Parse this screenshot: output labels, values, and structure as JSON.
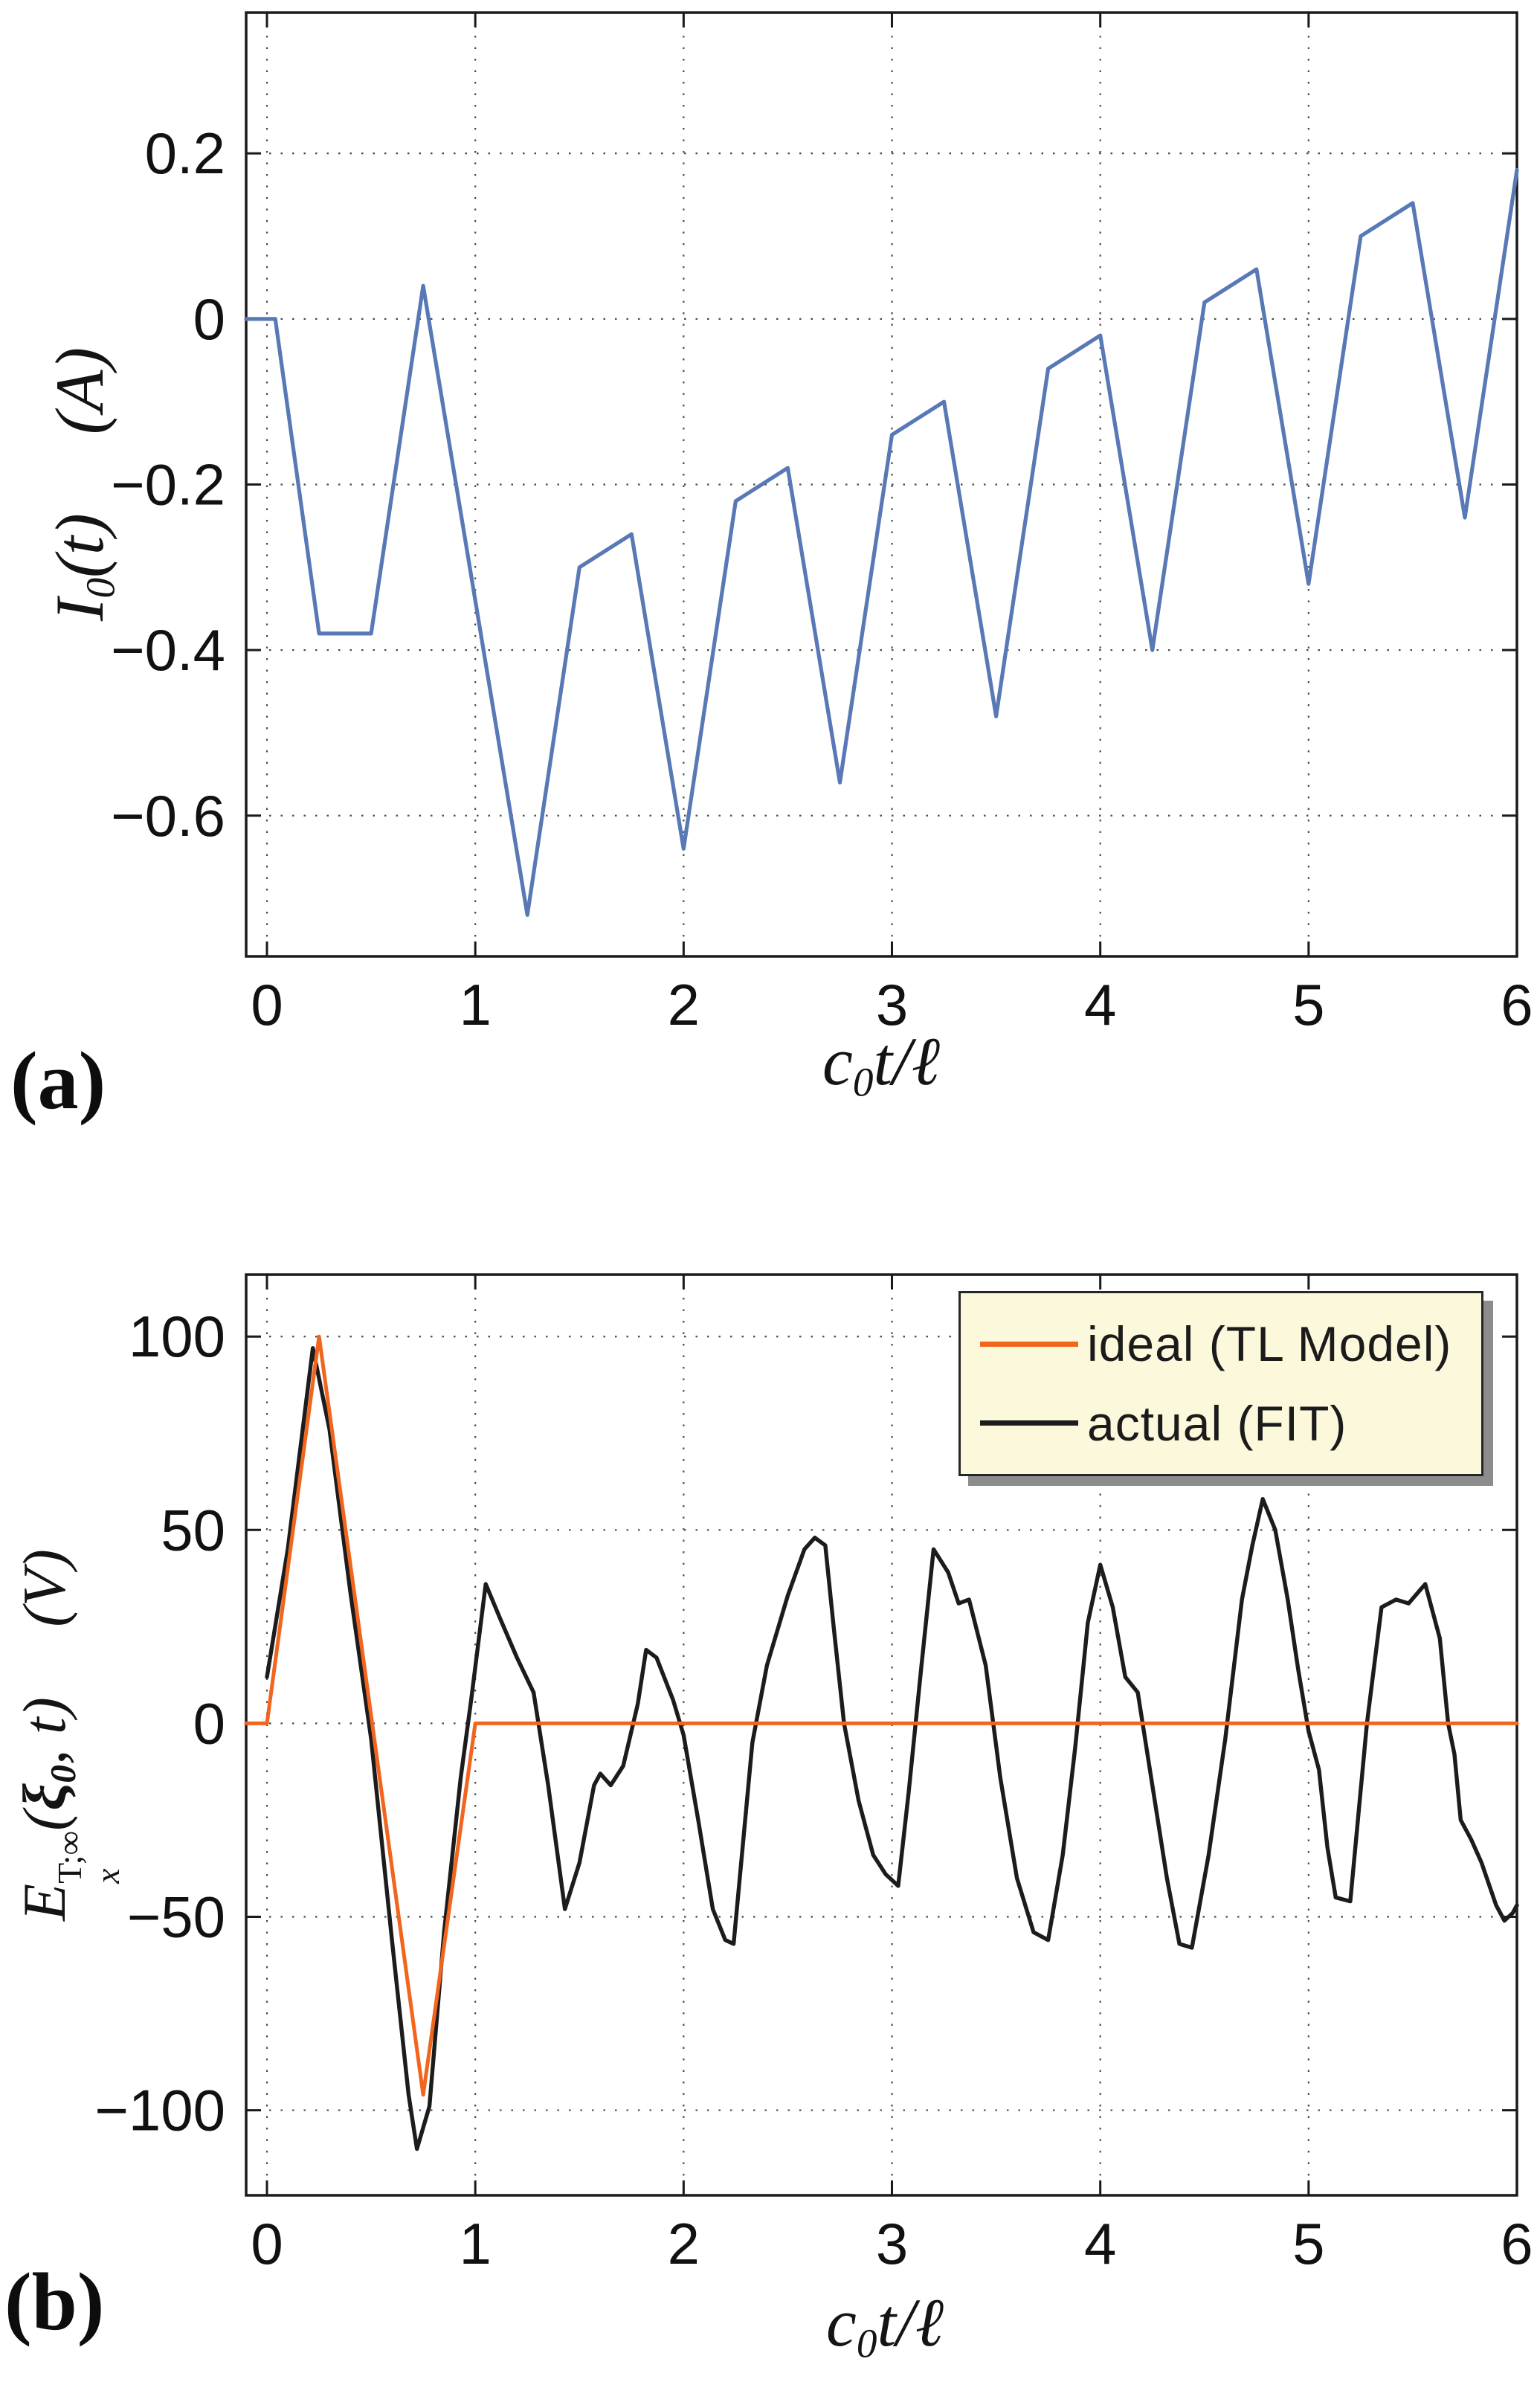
{
  "page": {
    "background": "#ffffff",
    "panel_a_label": "(a)",
    "panel_b_label": "(b)"
  },
  "colors": {
    "blue": "#5878B6",
    "orange": "#F2651C",
    "black": "#1c1c1c",
    "axis": "#1a1a1a",
    "grid": "#2b2b2b",
    "tick_text": "#111111",
    "legend_bg": "#FBF8DC",
    "legend_border": "#262626",
    "legend_shadow": "#8C8C8C"
  },
  "chart_data": [
    {
      "id": "chart-a",
      "type": "line",
      "title": "",
      "xlabel": "c0*t/l",
      "ylabel": "I0(t) (A)",
      "xlim": [
        -0.1,
        6.0
      ],
      "ylim": [
        -0.77,
        0.37
      ],
      "grid": true,
      "xticks": [
        {
          "v": 0,
          "label": "0"
        },
        {
          "v": 1,
          "label": "1"
        },
        {
          "v": 2,
          "label": "2"
        },
        {
          "v": 3,
          "label": "3"
        },
        {
          "v": 4,
          "label": "4"
        },
        {
          "v": 5,
          "label": "5"
        },
        {
          "v": 6,
          "label": "6"
        }
      ],
      "yticks": [
        {
          "v": 0.2,
          "label": "0.2"
        },
        {
          "v": 0,
          "label": "0"
        },
        {
          "v": -0.2,
          "label": "−0.2"
        },
        {
          "v": -0.4,
          "label": "−0.4"
        },
        {
          "v": -0.6,
          "label": "−0.6"
        }
      ],
      "xlabel_segments": [
        {
          "t": "c"
        },
        {
          "sub": "0"
        },
        {
          "t": "t/ℓ"
        }
      ],
      "ylabel_segments": [
        {
          "t": "I"
        },
        {
          "sub": "0"
        },
        {
          "t": "(t)"
        },
        {
          "gap": 1
        },
        {
          "t": "(A)"
        }
      ],
      "series": [
        {
          "name": "I0",
          "color": "blue",
          "width": 5.2,
          "points": [
            [
              -0.1,
              0
            ],
            [
              0.04,
              0
            ],
            [
              0.25,
              -0.38
            ],
            [
              0.5,
              -0.38
            ],
            [
              0.75,
              0.04
            ],
            [
              1.25,
              -0.72
            ],
            [
              1.5,
              -0.3
            ],
            [
              1.75,
              -0.26
            ],
            [
              2.0,
              -0.64
            ],
            [
              2.25,
              -0.22
            ],
            [
              2.5,
              -0.18
            ],
            [
              2.75,
              -0.56
            ],
            [
              3.0,
              -0.14
            ],
            [
              3.25,
              -0.1
            ],
            [
              3.5,
              -0.48
            ],
            [
              3.75,
              -0.06
            ],
            [
              4.0,
              -0.02
            ],
            [
              4.25,
              -0.4
            ],
            [
              4.5,
              0.02
            ],
            [
              4.75,
              0.06
            ],
            [
              5.0,
              -0.32
            ],
            [
              5.25,
              0.1
            ],
            [
              5.5,
              0.14
            ],
            [
              5.75,
              -0.24
            ],
            [
              6.0,
              0.18
            ]
          ]
        }
      ]
    },
    {
      "id": "chart-b",
      "type": "line",
      "title": "",
      "xlabel": "c0*t/l",
      "ylabel": "Ex^(T;inf)(xi0, t) (V)",
      "xlim": [
        -0.1,
        6.0
      ],
      "ylim": [
        -122,
        116
      ],
      "grid": true,
      "xticks": [
        {
          "v": 0,
          "label": "0"
        },
        {
          "v": 1,
          "label": "1"
        },
        {
          "v": 2,
          "label": "2"
        },
        {
          "v": 3,
          "label": "3"
        },
        {
          "v": 4,
          "label": "4"
        },
        {
          "v": 5,
          "label": "5"
        },
        {
          "v": 6,
          "label": "6"
        }
      ],
      "yticks": [
        {
          "v": 100,
          "label": "100"
        },
        {
          "v": 50,
          "label": "50"
        },
        {
          "v": 0,
          "label": "0"
        },
        {
          "v": -50,
          "label": "−50"
        },
        {
          "v": -100,
          "label": "−100"
        }
      ],
      "xlabel_segments": [
        {
          "t": "c"
        },
        {
          "sub": "0"
        },
        {
          "t": "t/ℓ"
        }
      ],
      "ylabel_segments": [
        {
          "t": "E"
        },
        {
          "stack": {
            "sup": "T;∞",
            "sub": "x"
          }
        },
        {
          "t": "("
        },
        {
          "t": "ξ",
          "b": 1
        },
        {
          "sub": "0",
          "b": 1
        },
        {
          "t": ", t)"
        },
        {
          "gap": 1
        },
        {
          "t": "(V)"
        }
      ],
      "legend": {
        "position": "top-right",
        "items": [
          {
            "label": "ideal (TL Model)",
            "color": "orange"
          },
          {
            "label": "actual (FIT)",
            "color": "black"
          }
        ]
      },
      "series": [
        {
          "name": "actual (FIT)",
          "color": "black",
          "width": 5.4,
          "points": [
            [
              0,
              12
            ],
            [
              0.1,
              45
            ],
            [
              0.22,
              97
            ],
            [
              0.3,
              76
            ],
            [
              0.4,
              34
            ],
            [
              0.5,
              -4
            ],
            [
              0.6,
              -56
            ],
            [
              0.68,
              -96
            ],
            [
              0.72,
              -110
            ],
            [
              0.78,
              -99
            ],
            [
              0.85,
              -54
            ],
            [
              0.93,
              -14
            ],
            [
              0.98,
              6
            ],
            [
              1.05,
              36
            ],
            [
              1.12,
              27
            ],
            [
              1.2,
              17
            ],
            [
              1.28,
              8
            ],
            [
              1.35,
              -16
            ],
            [
              1.43,
              -48
            ],
            [
              1.5,
              -36
            ],
            [
              1.57,
              -16
            ],
            [
              1.6,
              -13
            ],
            [
              1.65,
              -16
            ],
            [
              1.71,
              -11
            ],
            [
              1.78,
              5
            ],
            [
              1.82,
              19
            ],
            [
              1.87,
              17
            ],
            [
              1.95,
              6
            ],
            [
              2.0,
              -3
            ],
            [
              2.07,
              -25
            ],
            [
              2.14,
              -48
            ],
            [
              2.2,
              -56
            ],
            [
              2.24,
              -57
            ],
            [
              2.33,
              -5
            ],
            [
              2.4,
              15
            ],
            [
              2.5,
              33
            ],
            [
              2.58,
              45
            ],
            [
              2.63,
              48
            ],
            [
              2.68,
              46
            ],
            [
              2.72,
              25
            ],
            [
              2.77,
              0
            ],
            [
              2.84,
              -20
            ],
            [
              2.91,
              -34
            ],
            [
              2.97,
              -39
            ],
            [
              3.03,
              -42
            ],
            [
              3.08,
              -18
            ],
            [
              3.14,
              14
            ],
            [
              3.2,
              45
            ],
            [
              3.27,
              39
            ],
            [
              3.32,
              31
            ],
            [
              3.37,
              32
            ],
            [
              3.45,
              15
            ],
            [
              3.52,
              -14
            ],
            [
              3.6,
              -40
            ],
            [
              3.68,
              -54
            ],
            [
              3.75,
              -56
            ],
            [
              3.82,
              -34
            ],
            [
              3.88,
              -6
            ],
            [
              3.94,
              26
            ],
            [
              4.0,
              41
            ],
            [
              4.06,
              30
            ],
            [
              4.12,
              12
            ],
            [
              4.18,
              8
            ],
            [
              4.25,
              -16
            ],
            [
              4.32,
              -40
            ],
            [
              4.38,
              -57
            ],
            [
              4.44,
              -58
            ],
            [
              4.52,
              -34
            ],
            [
              4.6,
              -4
            ],
            [
              4.68,
              32
            ],
            [
              4.73,
              46
            ],
            [
              4.78,
              58
            ],
            [
              4.84,
              50
            ],
            [
              4.9,
              32
            ],
            [
              4.95,
              14
            ],
            [
              5.0,
              -2
            ],
            [
              5.05,
              -12
            ],
            [
              5.09,
              -32
            ],
            [
              5.13,
              -45
            ],
            [
              5.2,
              -46
            ],
            [
              5.28,
              0
            ],
            [
              5.35,
              30
            ],
            [
              5.42,
              32
            ],
            [
              5.48,
              31
            ],
            [
              5.56,
              36
            ],
            [
              5.63,
              22
            ],
            [
              5.67,
              0
            ],
            [
              5.7,
              -8
            ],
            [
              5.73,
              -25
            ],
            [
              5.78,
              -30
            ],
            [
              5.83,
              -36
            ],
            [
              5.9,
              -47
            ],
            [
              5.94,
              -51
            ],
            [
              5.98,
              -49
            ],
            [
              6.0,
              -47
            ]
          ]
        },
        {
          "name": "ideal (TL Model)",
          "color": "orange",
          "width": 5.0,
          "points": [
            [
              -0.1,
              0
            ],
            [
              0,
              0
            ],
            [
              0.25,
              100
            ],
            [
              0.75,
              -96
            ],
            [
              1.0,
              0
            ],
            [
              6.0,
              0
            ]
          ]
        }
      ]
    }
  ]
}
